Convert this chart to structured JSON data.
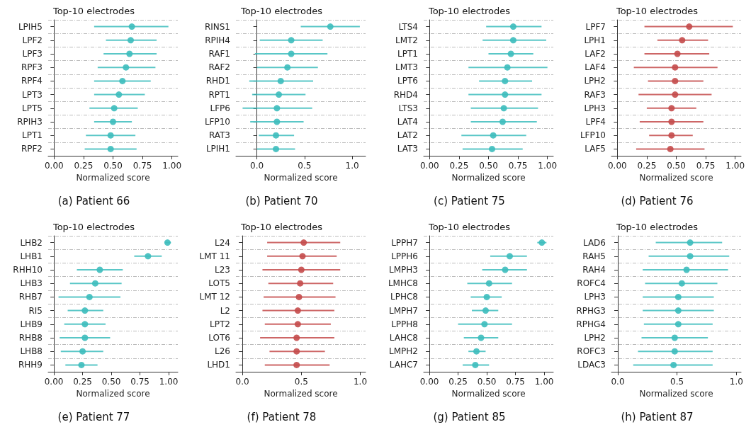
{
  "chart_data": [
    {
      "type": "scatter",
      "orientation": "horizontal",
      "title": "Top-10 electrodes",
      "subtitle": "(a) Patient 66",
      "xlabel": "Normalized score",
      "marker": "circle",
      "grid": "y",
      "color": "#3dbdbd",
      "categories": [
        "LPIH5",
        "LPF2",
        "LPF3",
        "RPF3",
        "RPF4",
        "LPT3",
        "LPT5",
        "RPIH3",
        "LPT1",
        "RPF2"
      ],
      "values": [
        0.66,
        0.65,
        0.64,
        0.61,
        0.58,
        0.55,
        0.51,
        0.5,
        0.48,
        0.48
      ],
      "errors": [
        [
          0.34,
          0.97
        ],
        [
          0.44,
          0.87
        ],
        [
          0.42,
          0.87
        ],
        [
          0.37,
          0.86
        ],
        [
          0.34,
          0.82
        ],
        [
          0.34,
          0.77
        ],
        [
          0.3,
          0.71
        ],
        [
          0.34,
          0.66
        ],
        [
          0.27,
          0.69
        ],
        [
          0.26,
          0.7
        ]
      ],
      "xlim": [
        -0.05,
        1.05
      ],
      "xticks": [
        {
          "value": 0,
          "label": "0.00"
        },
        0.25,
        {
          "value": 0.5,
          "label": "0.50"
        },
        0.75,
        {
          "value": 1,
          "label": "1.00"
        }
      ]
    },
    {
      "type": "scatter",
      "orientation": "horizontal",
      "title": "Top-10 electrodes",
      "subtitle": "(b) Patient 70",
      "xlabel": "Normalized score",
      "marker": "circle",
      "grid": "y",
      "color": "#3dbdbd",
      "categories": [
        "RINS1",
        "RPIH4",
        "RAF1",
        "RAF2",
        "RHD1",
        "RPT1",
        "LFP6",
        "LFP10",
        "RAT3",
        "LPIH1"
      ],
      "values": [
        0.77,
        0.36,
        0.36,
        0.32,
        0.25,
        0.23,
        0.21,
        0.21,
        0.2,
        0.2
      ],
      "errors": [
        [
          0.46,
          1.08
        ],
        [
          0.03,
          0.69
        ],
        [
          -0.02,
          0.74
        ],
        [
          0.0,
          0.64
        ],
        [
          -0.08,
          0.59
        ],
        [
          -0.05,
          0.51
        ],
        [
          -0.15,
          0.58
        ],
        [
          -0.07,
          0.49
        ],
        [
          0.02,
          0.39
        ],
        [
          0.0,
          0.4
        ]
      ],
      "xlim": [
        -0.22,
        1.14
      ],
      "xticks": [
        {
          "value": 0,
          "label": "0.0"
        },
        0.5,
        {
          "value": 1,
          "label": "1.0"
        }
      ]
    },
    {
      "type": "scatter",
      "orientation": "horizontal",
      "title": "Top-10 electrodes",
      "subtitle": "(c) Patient 75",
      "xlabel": "Normalized score",
      "marker": "circle",
      "grid": "y",
      "color": "#3dbdbd",
      "categories": [
        "LTS4",
        "LMT2",
        "LPT1",
        "LMT3",
        "LPT6",
        "RHD4",
        "LTS3",
        "LAT4",
        "LAT2",
        "LAT3"
      ],
      "values": [
        0.71,
        0.71,
        0.69,
        0.66,
        0.64,
        0.64,
        0.63,
        0.62,
        0.54,
        0.53
      ],
      "errors": [
        [
          0.48,
          0.95
        ],
        [
          0.45,
          0.99
        ],
        [
          0.5,
          0.88
        ],
        [
          0.33,
          1.0
        ],
        [
          0.42,
          0.87
        ],
        [
          0.33,
          0.95
        ],
        [
          0.35,
          0.92
        ],
        [
          0.35,
          0.91
        ],
        [
          0.27,
          0.82
        ],
        [
          0.28,
          0.79
        ]
      ],
      "xlim": [
        -0.05,
        1.05
      ],
      "xticks": [
        {
          "value": 0,
          "label": "0.00"
        },
        0.25,
        {
          "value": 0.5,
          "label": "0.50"
        },
        0.75,
        {
          "value": 1,
          "label": "1.00"
        }
      ]
    },
    {
      "type": "scatter",
      "orientation": "horizontal",
      "title": "Top-10 electrodes",
      "subtitle": "(d) Patient 76",
      "xlabel": "Normalized score",
      "marker": "circle",
      "grid": "y",
      "color": "#c44b4b",
      "categories": [
        "LPF7",
        "LPH1",
        "LAF2",
        "LAF4",
        "LPH2",
        "RAF3",
        "LPH3",
        "LPF4",
        "LFP10",
        "LAF5"
      ],
      "values": [
        0.61,
        0.55,
        0.51,
        0.49,
        0.49,
        0.49,
        0.46,
        0.46,
        0.46,
        0.45
      ],
      "errors": [
        [
          0.23,
          0.98
        ],
        [
          0.34,
          0.77
        ],
        [
          0.23,
          0.78
        ],
        [
          0.14,
          0.85
        ],
        [
          0.26,
          0.73
        ],
        [
          0.18,
          0.8
        ],
        [
          0.25,
          0.67
        ],
        [
          0.19,
          0.73
        ],
        [
          0.27,
          0.64
        ],
        [
          0.16,
          0.74
        ]
      ],
      "xlim": [
        -0.05,
        1.05
      ],
      "xticks": [
        {
          "value": 0,
          "label": "0.00"
        },
        0.25,
        {
          "value": 0.5,
          "label": "0.50"
        },
        0.75,
        {
          "value": 1,
          "label": "1.00"
        }
      ]
    },
    {
      "type": "scatter",
      "orientation": "horizontal",
      "title": "Top-10 electrodes",
      "subtitle": "(e) Patient 77",
      "xlabel": "Normalized score",
      "marker": "circle",
      "grid": "y",
      "color": "#3dbdbd",
      "categories": [
        "LHB2",
        "LHB1",
        "RHH10",
        "LHB3",
        "RHB7",
        "RI5",
        "LHB9",
        "RHB8",
        "LHB8",
        "RHH9"
      ],
      "values": [
        0.99,
        0.82,
        0.4,
        0.36,
        0.31,
        0.27,
        0.27,
        0.27,
        0.25,
        0.24
      ],
      "errors": [
        [
          0.97,
          1.02
        ],
        [
          0.7,
          0.94
        ],
        [
          0.2,
          0.6
        ],
        [
          0.14,
          0.59
        ],
        [
          0.04,
          0.58
        ],
        [
          0.12,
          0.43
        ],
        [
          0.09,
          0.45
        ],
        [
          0.05,
          0.49
        ],
        [
          0.06,
          0.43
        ],
        [
          0.1,
          0.38
        ]
      ],
      "xlim": [
        -0.05,
        1.08
      ],
      "xticks": [
        {
          "value": 0,
          "label": "0.00"
        },
        0.25,
        {
          "value": 0.5,
          "label": "0.50"
        },
        0.75,
        {
          "value": 1,
          "label": "1.00"
        }
      ]
    },
    {
      "type": "scatter",
      "orientation": "horizontal",
      "title": "Top-10 electrodes",
      "subtitle": "(f) Patient 78",
      "xlabel": "Normalized score",
      "marker": "circle",
      "grid": "y",
      "color": "#c44b4b",
      "categories": [
        "L24",
        "LMT 11",
        "L23",
        "LOT5",
        "LMT 12",
        "L2",
        "LPT2",
        "LOT6",
        "L26",
        "LHD1"
      ],
      "values": [
        0.52,
        0.51,
        0.5,
        0.49,
        0.48,
        0.47,
        0.47,
        0.46,
        0.46,
        0.46
      ],
      "errors": [
        [
          0.21,
          0.83
        ],
        [
          0.21,
          0.8
        ],
        [
          0.17,
          0.83
        ],
        [
          0.22,
          0.77
        ],
        [
          0.18,
          0.79
        ],
        [
          0.17,
          0.78
        ],
        [
          0.19,
          0.75
        ],
        [
          0.15,
          0.78
        ],
        [
          0.23,
          0.7
        ],
        [
          0.19,
          0.74
        ]
      ],
      "xlim": [
        -0.055,
        1.045
      ],
      "xticks": [
        {
          "value": 0,
          "label": "0.0"
        },
        0.5,
        {
          "value": 1,
          "label": "1.0"
        }
      ]
    },
    {
      "type": "scatter",
      "orientation": "horizontal",
      "title": "Top-10 electrodes",
      "subtitle": "(g) Patient 85",
      "xlabel": "Normalized score",
      "marker": "circle",
      "grid": "y",
      "color": "#3dbdbd",
      "categories": [
        "LPPH7",
        "LPPH6",
        "LMPH3",
        "LMHC8",
        "LPHC8",
        "LMPH7",
        "LPPH8",
        "LAHC8",
        "LMPH2",
        "LAHC7"
      ],
      "values": [
        0.98,
        0.7,
        0.66,
        0.52,
        0.5,
        0.49,
        0.48,
        0.45,
        0.41,
        0.4
      ],
      "errors": [
        [
          0.94,
          1.02
        ],
        [
          0.53,
          0.85
        ],
        [
          0.46,
          0.85
        ],
        [
          0.33,
          0.72
        ],
        [
          0.36,
          0.63
        ],
        [
          0.37,
          0.6
        ],
        [
          0.25,
          0.72
        ],
        [
          0.3,
          0.6
        ],
        [
          0.34,
          0.49
        ],
        [
          0.29,
          0.52
        ]
      ],
      "xlim": [
        -0.05,
        1.08
      ],
      "xticks": [
        {
          "value": 0,
          "label": "0.00"
        },
        0.25,
        {
          "value": 0.5,
          "label": "0.50"
        },
        0.75,
        {
          "value": 1,
          "label": "1.00"
        }
      ]
    },
    {
      "type": "scatter",
      "orientation": "horizontal",
      "title": "Top-10 electrodes",
      "subtitle": "(h) Patient 87",
      "xlabel": "Normalized score",
      "marker": "circle",
      "grid": "y",
      "color": "#3dbdbd",
      "categories": [
        "LAD6",
        "RAH5",
        "RAH4",
        "ROFC4",
        "LPH3",
        "RPHG3",
        "RPHG4",
        "LPH2",
        "ROFC3",
        "LDAC3"
      ],
      "values": [
        0.61,
        0.61,
        0.58,
        0.54,
        0.51,
        0.51,
        0.51,
        0.48,
        0.48,
        0.47
      ],
      "errors": [
        [
          0.32,
          0.88
        ],
        [
          0.26,
          0.94
        ],
        [
          0.21,
          0.93
        ],
        [
          0.23,
          0.84
        ],
        [
          0.21,
          0.81
        ],
        [
          0.21,
          0.81
        ],
        [
          0.22,
          0.8
        ],
        [
          0.2,
          0.76
        ],
        [
          0.17,
          0.8
        ],
        [
          0.13,
          0.8
        ]
      ],
      "xlim": [
        -0.054,
        1.04
      ],
      "xticks": [
        {
          "value": 0,
          "label": "0.0"
        },
        0.5,
        {
          "value": 1,
          "label": "1.0"
        }
      ]
    }
  ]
}
